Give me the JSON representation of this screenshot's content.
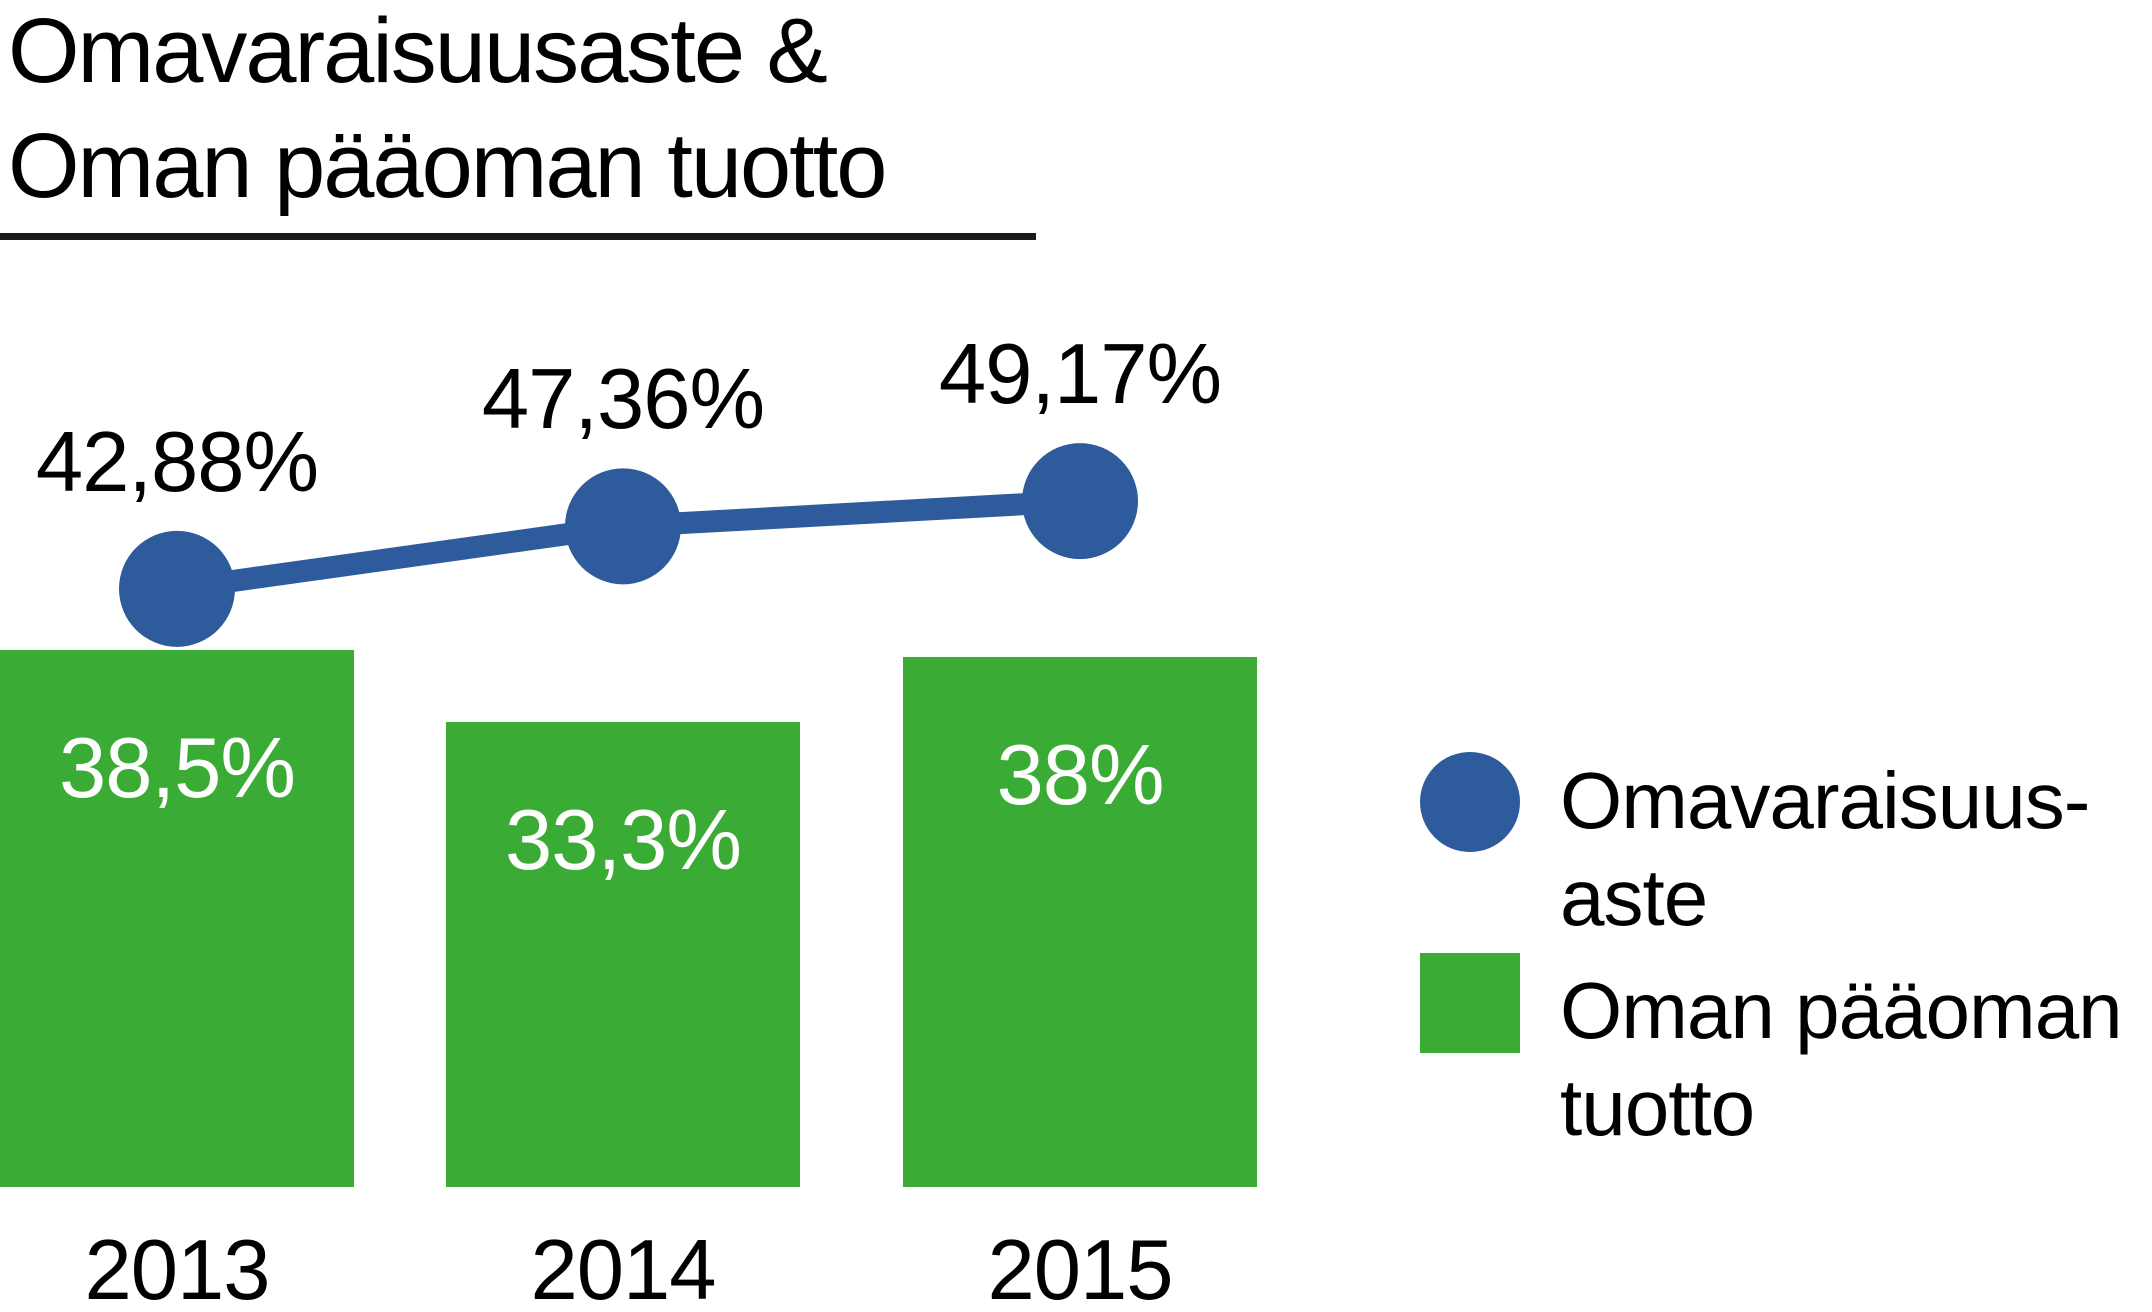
{
  "title": {
    "line1": "Omavaraisuusaste &",
    "line2": "Oman pääoman tuotto"
  },
  "colors": {
    "blue": "#2e5b9b",
    "green": "#3aab34",
    "text": "#000000",
    "bar_value_text": "#ffffff",
    "background": "#ffffff"
  },
  "chart_data": {
    "type": "bar",
    "subtype": "combo bar + line with point markers",
    "title": "Omavaraisuusaste & Oman pääoman tuotto",
    "categories": [
      "2013",
      "2014",
      "2015"
    ],
    "series": [
      {
        "name": "Omavaraisuusaste",
        "type": "line",
        "color": "#2e5b9b",
        "values": [
          42.88,
          47.36,
          49.17
        ],
        "labels": [
          "42,88%",
          "47,36%",
          "49,17%"
        ]
      },
      {
        "name": "Oman pääoman tuotto",
        "type": "bar",
        "color": "#3aab34",
        "values": [
          38.5,
          33.3,
          38.0
        ],
        "labels": [
          "38,5%",
          "33,3%",
          "38%"
        ]
      }
    ],
    "xlabel": "",
    "ylabel": "",
    "ylim": [
      0,
      85
    ],
    "grid": false,
    "axes_visible": false,
    "legend_position": "right"
  },
  "legend": {
    "items": [
      {
        "marker": "circle",
        "color": "#2e5b9b",
        "line1": "Omavaraisuus-",
        "line2": "aste"
      },
      {
        "marker": "square",
        "color": "#3aab34",
        "line1": "Oman pääoman",
        "line2": "tuotto"
      }
    ]
  }
}
